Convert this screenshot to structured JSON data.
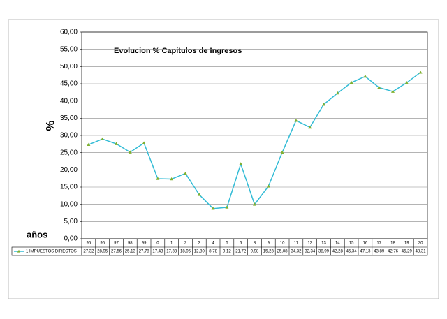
{
  "chart_data": {
    "type": "line",
    "title": "Evolucion % Capitulos de Ingresos",
    "y_label": "%",
    "x_label": "años",
    "categories": [
      "95",
      "96",
      "97",
      "98",
      "99",
      "0",
      "1",
      "2",
      "3",
      "4",
      "5",
      "6",
      "8",
      "9",
      "10",
      "11",
      "12",
      "13",
      "14",
      "15",
      "16",
      "17",
      "18",
      "19",
      "20"
    ],
    "series": [
      {
        "name": "1 IMPUESTOS DIRECTOS",
        "color": "#33bcd6",
        "marker_color": "#80b030",
        "values": [
          27.32,
          28.95,
          27.56,
          25.13,
          27.78,
          17.43,
          17.33,
          18.96,
          12.8,
          8.78,
          9.12,
          21.72,
          9.98,
          15.23,
          25.08,
          34.32,
          32.34,
          38.99,
          42.28,
          45.34,
          47.13,
          43.89,
          42.76,
          45.29,
          48.31
        ],
        "value_labels": [
          "27,32",
          "28,95",
          "27,56",
          "25,13",
          "27,78",
          "17,43",
          "17,33",
          "18,96",
          "12,80",
          "8,78",
          "9,12",
          "21,72",
          "9,98",
          "15,23",
          "25,08",
          "34,32",
          "32,34",
          "38,99",
          "42,28",
          "45,34",
          "47,13",
          "43,89",
          "42,76",
          "45,29",
          "48,31"
        ]
      }
    ],
    "ylim": [
      0,
      60
    ],
    "yticks": [
      {
        "value": 0,
        "label": "0,00"
      },
      {
        "value": 5,
        "label": "5,00"
      },
      {
        "value": 10,
        "label": "10,00"
      },
      {
        "value": 15,
        "label": "15,00"
      },
      {
        "value": 20,
        "label": "20,00"
      },
      {
        "value": 25,
        "label": "25,00"
      },
      {
        "value": 30,
        "label": "30,00"
      },
      {
        "value": 35,
        "label": "35,00"
      },
      {
        "value": 40,
        "label": "40,00"
      },
      {
        "value": 45,
        "label": "45,00"
      },
      {
        "value": 50,
        "label": "50,00"
      },
      {
        "value": 55,
        "label": "55,00"
      },
      {
        "value": 60,
        "label": "60,00"
      }
    ],
    "grid": true
  }
}
